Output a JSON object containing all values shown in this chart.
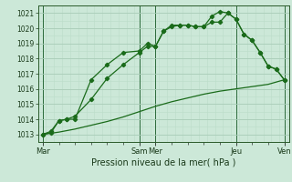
{
  "xlabel": "Pression niveau de la mer( hPa )",
  "bg_color": "#cce8d8",
  "grid_color_major": "#aaccb8",
  "grid_color_minor": "#bbddc8",
  "line_color": "#1a6b1a",
  "ylim": [
    1012.5,
    1021.5
  ],
  "yticks": [
    1013,
    1014,
    1015,
    1016,
    1017,
    1018,
    1019,
    1020,
    1021
  ],
  "xlim": [
    -0.3,
    15.3
  ],
  "major_xtick_pos": [
    0,
    6,
    7,
    12,
    15
  ],
  "major_xtick_labels": [
    "Mar",
    "Sam",
    "Mer",
    "Jeu",
    "Ven"
  ],
  "line1_x": [
    0,
    0.5,
    1,
    1.5,
    2,
    3,
    4,
    5,
    6,
    6.5,
    7,
    7.5,
    8,
    8.5,
    9,
    9.5,
    10,
    10.5,
    11,
    11.5,
    12,
    12.5,
    13,
    13.5,
    14,
    14.5,
    15
  ],
  "line1_y": [
    1013.0,
    1013.2,
    1013.9,
    1014.0,
    1014.0,
    1016.6,
    1017.6,
    1018.4,
    1018.5,
    1019.0,
    1018.8,
    1019.8,
    1020.1,
    1020.2,
    1020.2,
    1020.1,
    1020.1,
    1020.4,
    1020.4,
    1021.0,
    1020.6,
    1019.6,
    1019.2,
    1018.4,
    1017.5,
    1017.3,
    1016.6
  ],
  "line2_x": [
    0,
    0.5,
    1,
    1.5,
    2,
    3,
    4,
    5,
    6,
    6.5,
    7,
    7.5,
    8,
    8.5,
    9,
    9.5,
    10,
    10.5,
    11,
    11.5,
    12,
    12.5,
    13,
    13.5,
    14,
    14.5,
    15
  ],
  "line2_y": [
    1013.0,
    1013.1,
    1013.9,
    1014.0,
    1014.2,
    1015.3,
    1016.7,
    1017.6,
    1018.4,
    1018.8,
    1018.8,
    1019.8,
    1020.2,
    1020.2,
    1020.2,
    1020.1,
    1020.1,
    1020.8,
    1021.1,
    1021.0,
    1020.6,
    1019.6,
    1019.2,
    1018.4,
    1017.5,
    1017.3,
    1016.6
  ],
  "line3_x": [
    0,
    1,
    2,
    3,
    4,
    5,
    6,
    7,
    8,
    9,
    10,
    11,
    12,
    13,
    14,
    15
  ],
  "line3_y": [
    1013.0,
    1013.15,
    1013.35,
    1013.6,
    1013.85,
    1014.15,
    1014.5,
    1014.85,
    1015.15,
    1015.4,
    1015.65,
    1015.85,
    1016.0,
    1016.15,
    1016.3,
    1016.6
  ]
}
